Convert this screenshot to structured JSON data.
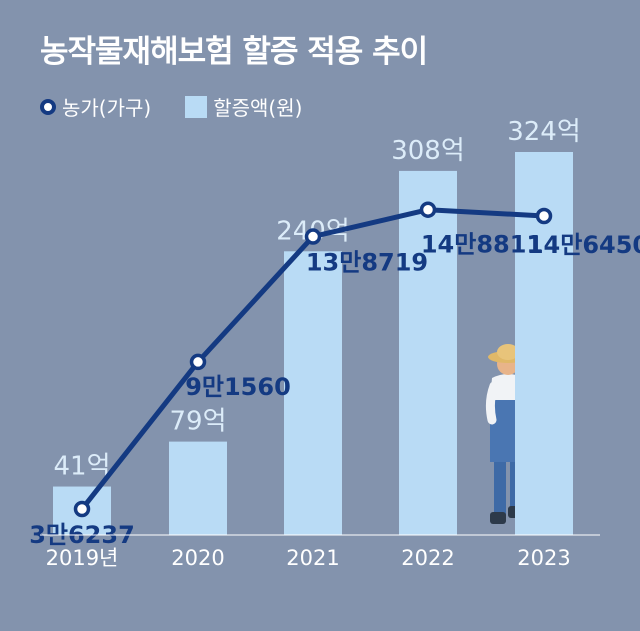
{
  "title": "농작물재해보험 할증 적용 추이",
  "legend": {
    "line_label": "농가(가구)",
    "bar_label": "할증액(원)"
  },
  "colors": {
    "background": "#8393ad",
    "bar": "#b9dbf5",
    "line": "#143a82",
    "bar_label": "#dcecf9",
    "point_label": "#143a82",
    "axis_text": "#ffffff"
  },
  "chart_data": {
    "type": "bar",
    "categories": [
      "2019년",
      "2020",
      "2021",
      "2022",
      "2023"
    ],
    "series": [
      {
        "name": "할증액(원)",
        "type": "bar",
        "values": [
          41,
          79,
          240,
          308,
          324
        ],
        "labels": [
          "41억",
          "79억",
          "240억",
          "308억",
          "324억"
        ]
      },
      {
        "name": "농가(가구)",
        "type": "line",
        "values": [
          36237,
          91560,
          138719,
          148811,
          146450
        ],
        "labels": [
          "3만6237",
          "9만1560",
          "13만8719",
          "14만8811",
          "14만6450"
        ]
      }
    ]
  }
}
